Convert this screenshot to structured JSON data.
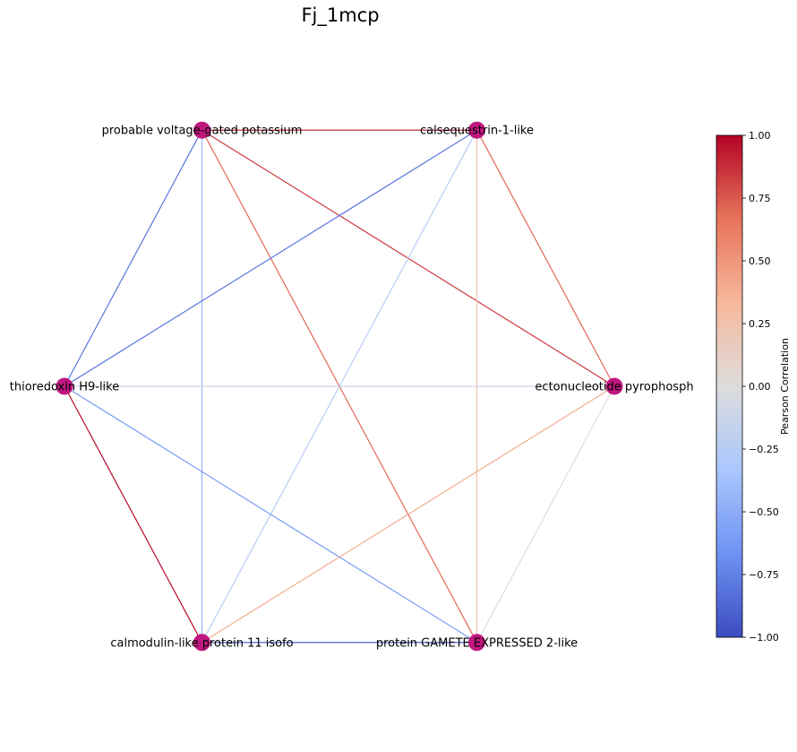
{
  "title": "Fj_1mcp",
  "colors": {
    "node": "#c0177f",
    "cmap_stops": [
      "#3b4cc0",
      "#6f92f3",
      "#aac7fd",
      "#dddcdc",
      "#f7b89c",
      "#e7745b",
      "#b40426"
    ]
  },
  "chart_data": {
    "type": "network",
    "layout": "circular",
    "nodes": [
      {
        "id": "n0",
        "label": "ectonucleotide pyrophosph"
      },
      {
        "id": "n1",
        "label": "calsequestrin-1-like"
      },
      {
        "id": "n2",
        "label": "probable voltage-gated potassium"
      },
      {
        "id": "n3",
        "label": "thioredoxin H9-like"
      },
      {
        "id": "n4",
        "label": "calmodulin-like protein 11 isofo"
      },
      {
        "id": "n5",
        "label": "protein GAMETE EXPRESSED 2-like"
      }
    ],
    "edges": [
      {
        "source": "n2",
        "target": "n1",
        "weight": 0.95
      },
      {
        "source": "n2",
        "target": "n3",
        "weight": -0.8
      },
      {
        "source": "n2",
        "target": "n4",
        "weight": -0.45
      },
      {
        "source": "n2",
        "target": "n0",
        "weight": 0.85
      },
      {
        "source": "n2",
        "target": "n5",
        "weight": 0.7
      },
      {
        "source": "n1",
        "target": "n3",
        "weight": -0.8
      },
      {
        "source": "n1",
        "target": "n4",
        "weight": -0.25
      },
      {
        "source": "n1",
        "target": "n0",
        "weight": 0.7
      },
      {
        "source": "n1",
        "target": "n5",
        "weight": 0.25
      },
      {
        "source": "n3",
        "target": "n0",
        "weight": -0.1
      },
      {
        "source": "n3",
        "target": "n4",
        "weight": 0.98
      },
      {
        "source": "n3",
        "target": "n5",
        "weight": -0.6
      },
      {
        "source": "n0",
        "target": "n4",
        "weight": 0.4
      },
      {
        "source": "n0",
        "target": "n5",
        "weight": 0.0
      },
      {
        "source": "n4",
        "target": "n5",
        "weight": -0.98
      }
    ],
    "colorbar": {
      "label": "Pearson Correlation",
      "range": [
        -1.0,
        1.0
      ],
      "ticks": [
        1.0,
        0.75,
        0.5,
        0.25,
        0.0,
        -0.25,
        -0.5,
        -0.75,
        -1.0
      ],
      "tick_labels": [
        "1.00",
        "0.75",
        "0.50",
        "0.25",
        "0.00",
        "−0.25",
        "−0.50",
        "−0.75",
        "−1.00"
      ]
    }
  }
}
